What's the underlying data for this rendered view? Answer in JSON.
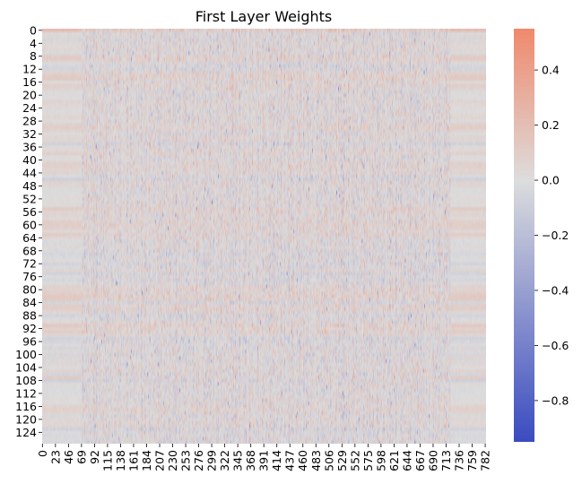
{
  "chart_data": {
    "type": "heatmap",
    "title": "First Layer Weights",
    "xlabel": "",
    "ylabel": "",
    "rows": 128,
    "cols": 784,
    "y_ticks": [
      0,
      4,
      8,
      12,
      16,
      20,
      24,
      28,
      32,
      36,
      40,
      44,
      48,
      52,
      56,
      60,
      64,
      68,
      72,
      76,
      80,
      84,
      88,
      92,
      96,
      100,
      104,
      108,
      112,
      116,
      120,
      124
    ],
    "x_ticks": [
      0,
      23,
      46,
      69,
      92,
      115,
      138,
      161,
      184,
      207,
      230,
      253,
      276,
      299,
      322,
      345,
      368,
      391,
      414,
      437,
      460,
      483,
      506,
      529,
      552,
      575,
      598,
      621,
      644,
      667,
      690,
      713,
      736,
      759,
      782
    ],
    "colormap": "coolwarm",
    "colorbar": {
      "min": -0.95,
      "max": 0.55,
      "ticks": [
        0.4,
        0.2,
        0.0,
        -0.2,
        -0.4,
        -0.6,
        -0.8
      ],
      "tick_labels": [
        "0.4",
        "0.2",
        "0.0",
        "−0.2",
        "−0.4",
        "−0.6",
        "−0.8"
      ]
    },
    "colors": {
      "low": "#3b4cc0",
      "mid": "#dddddd",
      "high": "#f08a6e"
    },
    "grid": false
  }
}
